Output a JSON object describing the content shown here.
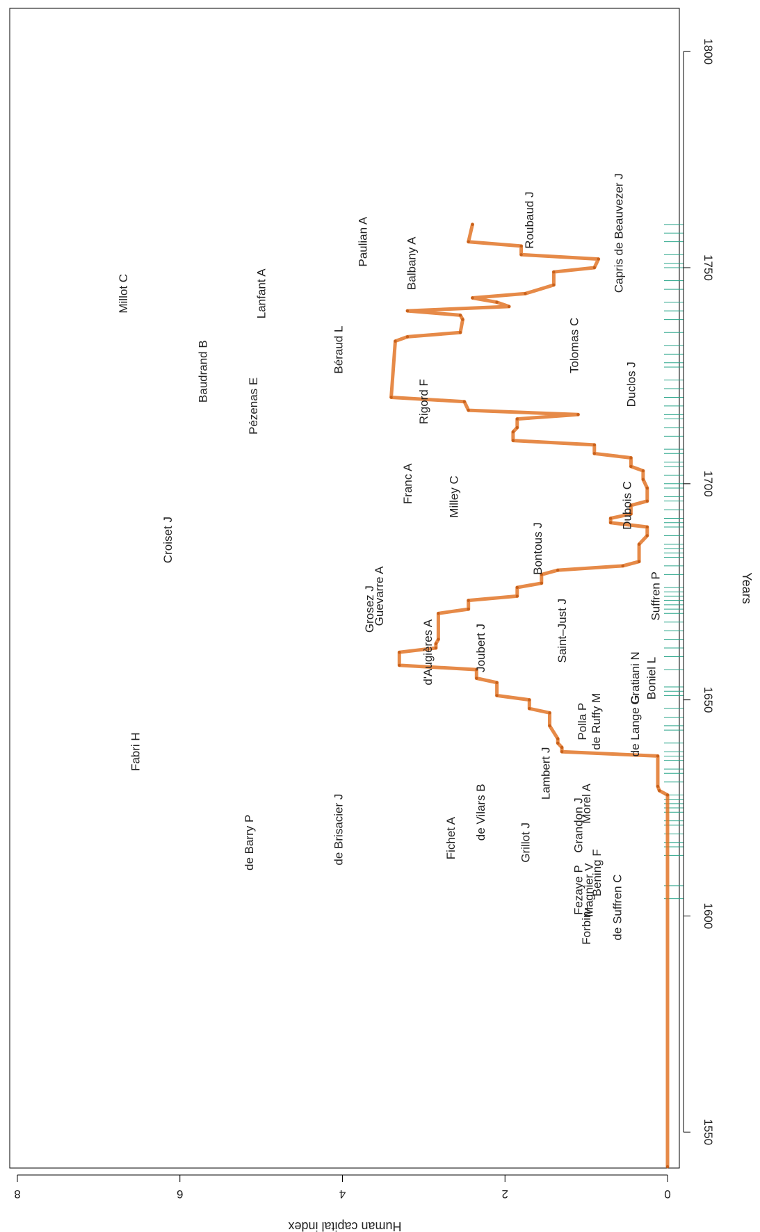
{
  "chart_data": {
    "type": "line",
    "orientation": "rotated 90 degrees clockwise (years run along the vertical, index increases to the left)",
    "xlabel": "Years",
    "ylabel": "Human capital index",
    "xlim": [
      1542,
      1810
    ],
    "ylim": [
      0,
      8
    ],
    "x_ticks": [
      1550,
      1600,
      1650,
      1700,
      1750,
      1800
    ],
    "y_ticks": [
      0,
      2,
      4,
      6,
      8
    ],
    "grid": false,
    "legend": "none",
    "colors": {
      "line": "#e07020",
      "rug": "#2aa58a",
      "text": "#222222"
    },
    "series": [
      {
        "points": [
          [
            1542,
            0.0
          ],
          [
            1628,
            0.0
          ],
          [
            1629,
            0.1
          ],
          [
            1630,
            0.12
          ],
          [
            1637,
            0.12
          ],
          [
            1638,
            1.3
          ],
          [
            1639,
            1.3
          ],
          [
            1640,
            1.35
          ],
          [
            1641,
            1.35
          ],
          [
            1644,
            1.45
          ],
          [
            1647,
            1.45
          ],
          [
            1648,
            1.7
          ],
          [
            1650,
            1.7
          ],
          [
            1651,
            2.1
          ],
          [
            1654,
            2.1
          ],
          [
            1655,
            2.35
          ],
          [
            1657,
            2.35
          ],
          [
            1658,
            3.3
          ],
          [
            1661,
            3.3
          ],
          [
            1662,
            2.85
          ],
          [
            1663,
            2.85
          ],
          [
            1664,
            2.82
          ],
          [
            1670,
            2.82
          ],
          [
            1671,
            2.45
          ],
          [
            1673,
            2.45
          ],
          [
            1674,
            1.85
          ],
          [
            1676,
            1.85
          ],
          [
            1677,
            1.55
          ],
          [
            1679,
            1.55
          ],
          [
            1680,
            1.35
          ],
          [
            1681,
            0.55
          ],
          [
            1682,
            0.35
          ],
          [
            1686,
            0.35
          ],
          [
            1688,
            0.25
          ],
          [
            1690,
            0.25
          ],
          [
            1691,
            0.7
          ],
          [
            1692,
            0.7
          ],
          [
            1693,
            0.45
          ],
          [
            1695,
            0.45
          ],
          [
            1696,
            0.25
          ],
          [
            1699,
            0.25
          ],
          [
            1701,
            0.3
          ],
          [
            1703,
            0.3
          ],
          [
            1704,
            0.45
          ],
          [
            1706,
            0.45
          ],
          [
            1707,
            0.9
          ],
          [
            1709,
            0.9
          ],
          [
            1710,
            1.9
          ],
          [
            1712,
            1.9
          ],
          [
            1713,
            1.85
          ],
          [
            1715,
            1.85
          ],
          [
            1716,
            1.1
          ],
          [
            1717,
            2.45
          ],
          [
            1719,
            2.5
          ],
          [
            1720,
            3.4
          ],
          [
            1733,
            3.35
          ],
          [
            1734,
            3.2
          ],
          [
            1735,
            2.55
          ],
          [
            1738,
            2.52
          ],
          [
            1739,
            2.55
          ],
          [
            1740,
            3.2
          ],
          [
            1741,
            1.95
          ],
          [
            1742,
            2.1
          ],
          [
            1743,
            2.4
          ],
          [
            1744,
            1.75
          ],
          [
            1746,
            1.4
          ],
          [
            1749,
            1.4
          ],
          [
            1750,
            0.9
          ],
          [
            1752,
            0.85
          ],
          [
            1753,
            1.8
          ],
          [
            1755,
            1.8
          ],
          [
            1756,
            2.45
          ],
          [
            1760,
            2.4
          ]
        ]
      }
    ],
    "rug_years": [
      1604,
      1607,
      1614,
      1616,
      1617,
      1619,
      1621,
      1622,
      1624,
      1625,
      1626,
      1627,
      1628,
      1631,
      1633,
      1634,
      1636,
      1637,
      1638,
      1640,
      1643,
      1644,
      1646,
      1648,
      1651,
      1652,
      1653,
      1657,
      1660,
      1662,
      1664,
      1666,
      1668,
      1670,
      1671,
      1672,
      1673,
      1674,
      1675,
      1676,
      1679,
      1681,
      1683,
      1684,
      1685,
      1686,
      1688,
      1690,
      1691,
      1692,
      1694,
      1696,
      1697,
      1699,
      1700,
      1702,
      1704,
      1705,
      1707,
      1708,
      1711,
      1713,
      1715,
      1716,
      1718,
      1720,
      1722,
      1724,
      1727,
      1728,
      1730,
      1732,
      1735,
      1738,
      1740,
      1742,
      1745,
      1747,
      1750,
      1751,
      1753,
      1756,
      1758,
      1760
    ],
    "annotations": [
      {
        "text": "Millot C",
        "year": 1744,
        "index": 6.65
      },
      {
        "text": "Baudrand B",
        "year": 1726,
        "index": 5.67
      },
      {
        "text": "Lanfant A",
        "year": 1744,
        "index": 4.95
      },
      {
        "text": "Pézenas E",
        "year": 1718,
        "index": 5.05
      },
      {
        "text": "Paulian A",
        "year": 1756,
        "index": 3.7
      },
      {
        "text": "Béraud L",
        "year": 1731,
        "index": 4.0
      },
      {
        "text": "Balbany A",
        "year": 1751,
        "index": 3.1
      },
      {
        "text": "Roubaud J",
        "year": 1761,
        "index": 1.65
      },
      {
        "text": "Capris de Beauvezer J",
        "year": 1758,
        "index": 0.55
      },
      {
        "text": "Tolomas C",
        "year": 1732,
        "index": 1.1
      },
      {
        "text": "Duclos J",
        "year": 1723,
        "index": 0.4
      },
      {
        "text": "Rigord F",
        "year": 1719,
        "index": 2.95
      },
      {
        "text": "Franc A",
        "year": 1700,
        "index": 3.15
      },
      {
        "text": "Milley C",
        "year": 1697,
        "index": 2.58
      },
      {
        "text": "Dubois C",
        "year": 1695,
        "index": 0.45
      },
      {
        "text": "Croiset J",
        "year": 1687,
        "index": 6.1
      },
      {
        "text": "Bontous J",
        "year": 1685,
        "index": 1.55
      },
      {
        "text": "Guevarre A",
        "year": 1674,
        "index": 3.5
      },
      {
        "text": "Grosez J",
        "year": 1671,
        "index": 3.62
      },
      {
        "text": "Suffren P",
        "year": 1674,
        "index": 0.1
      },
      {
        "text": "Saint–Just J",
        "year": 1666,
        "index": 1.25
      },
      {
        "text": "d'Augières A",
        "year": 1661,
        "index": 2.9
      },
      {
        "text": "Joubert J",
        "year": 1662,
        "index": 2.25
      },
      {
        "text": "Gratiani N",
        "year": 1655,
        "index": 0.35
      },
      {
        "text": "Boniel L",
        "year": 1655,
        "index": 0.15
      },
      {
        "text": "Polla P",
        "year": 1645,
        "index": 1.0
      },
      {
        "text": "de Ruffy M",
        "year": 1645,
        "index": 0.83
      },
      {
        "text": "de Lange G",
        "year": 1644,
        "index": 0.35
      },
      {
        "text": "Fabri H",
        "year": 1638,
        "index": 6.5
      },
      {
        "text": "de Brisacier J",
        "year": 1620,
        "index": 4.0
      },
      {
        "text": "de Barry P",
        "year": 1617,
        "index": 5.1
      },
      {
        "text": "Lambert J",
        "year": 1633,
        "index": 1.45
      },
      {
        "text": "Morel A",
        "year": 1626,
        "index": 0.95
      },
      {
        "text": "Grandon J",
        "year": 1621,
        "index": 1.05
      },
      {
        "text": "Fichet A",
        "year": 1618,
        "index": 2.62
      },
      {
        "text": "de Vilars B",
        "year": 1624,
        "index": 2.25
      },
      {
        "text": "Grillot J",
        "year": 1617,
        "index": 1.7
      },
      {
        "text": "Bening F",
        "year": 1610,
        "index": 0.82
      },
      {
        "text": "Fezaye P",
        "year": 1606,
        "index": 1.05
      },
      {
        "text": "Magnier V",
        "year": 1606,
        "index": 0.92
      },
      {
        "text": "Forbin–",
        "year": 1598,
        "index": 0.95
      },
      {
        "text": "de Suffren C",
        "year": 1602,
        "index": 0.57
      }
    ]
  }
}
